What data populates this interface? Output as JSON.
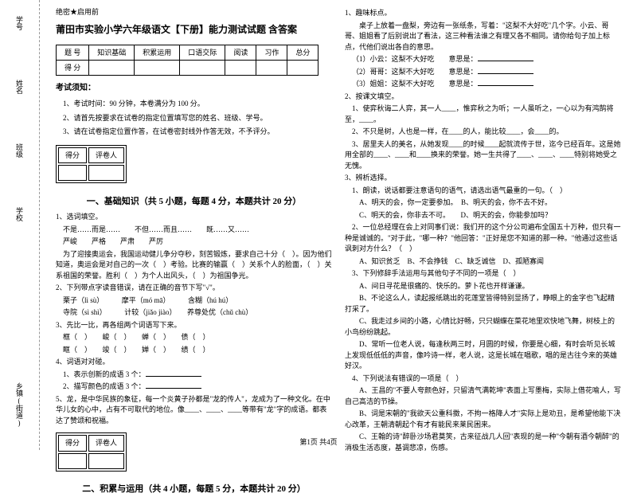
{
  "margin": {
    "l1": "学号",
    "l2": "姓名",
    "l3": "班级",
    "l4": "学校",
    "l5": "乡镇(街道)",
    "note1": "考",
    "note2": "内",
    "note3": "线",
    "note4": "封"
  },
  "secret": "绝密★启用前",
  "title": "莆田市实验小学六年级语文【下册】能力测试试题 含答案",
  "scoreTable": {
    "headers": [
      "题 号",
      "知识基础",
      "积累运用",
      "口语交际",
      "阅读",
      "习作",
      "总分"
    ],
    "row2": "得 分"
  },
  "notice": {
    "title": "考试须知：",
    "items": [
      "1、考试时间：90 分钟，本卷满分为 100 分。",
      "2、请首先按要求在试卷的指定位置填写您的姓名、班级、学号。",
      "3、请在试卷指定位置作答，在试卷密封线外作答无效，不予评分。"
    ]
  },
  "scoreBox": {
    "c1": "得分",
    "c2": "评卷人"
  },
  "section1": "一、基础知识（共 5 小题，每题 4 分，本题共计 20 分）",
  "q1": {
    "num": "1、选词填空。",
    "line1": "不是……而是……　　不但……而且……　　既……又……",
    "line2": "严峻　　严格　　严肃　　严厉",
    "line3": "为了迎接奥运会，我国运动健儿争分夺秒，刻苦锻炼，要求自己十分（　）。因为他们知道，奥运会是对自己的一次（　）考验。比赛的输赢（　）关系个人的脸面，（　）关系祖国的荣誉。胜利（　）为个人出风头，（　）为祖国争光。"
  },
  "q2": {
    "num": "2、下列带点字读音错误，请在正确的音节下写\"√\"。",
    "line1": "栗子（lì sù）　　　摩平（mó mā）　　　含糊（hú hú）",
    "line2": "寺院（sì shì）　　　计较（jiǎo jiào）　　养尊处优（chǔ chù）"
  },
  "q3": {
    "num": "3、先比一比，再各组两个词语写下来。",
    "line1": "框（　）　　峻（　）　　蝉（　）　　债（　）",
    "line2": "眶（　）　　竣（　）　　婵（　）　　绩（　）"
  },
  "q4": {
    "num": "4、词语对对碰。",
    "line1": "1、表示创新的成语 3 个：",
    "line2": "2、描写颜色的成语 3 个："
  },
  "q5": {
    "num": "5、龙，是中华民族的象征，每一个炎黄子孙都是\"龙的传人\"，龙成为了一种文化。在中华儿女的心中，占有不可取代的地位。像____、____、____等带有\"龙\"字的成语。都表达了赞颂和祝福。"
  },
  "section2": "二、积累与运用（共 4 小题，每题 5 分，本题共计 20 分）",
  "r1": {
    "num": "1、趣味标点。",
    "text1": "桌子上放着一盘梨，旁边有一张纸条，写着：\"这梨不大好吃\"几个字。小云、哥哥、姐姐看了后别说出了看法，这三种看法谁之有理又各不相同。请你给句子加上标点，代他们说出各自的意思。",
    "line1": "（1）小云：这梨不大好吃　　意思是：",
    "line2": "（2）哥哥：这梨不大好吃　　意思是：",
    "line3": "（3）姐姐：这梨不大好吃　　意思是："
  },
  "r2": {
    "num": "2、按课文填空。",
    "line1": "1、使弈秋诲二人弈，其一人____，惟弈秋之为听；一人虽听之，一心以为有鸿鹄将至，____。",
    "line2": "2、不只是树，人也是一样，在____的人，能比较____，会____的。",
    "line3": "3、居里夫人的美名，从她发现____的时候____起就流传于世，迄今已经百年。这是她用全部的____、____和____换来的荣誉。她一生共得了____、____、____特别将她受之无愧。"
  },
  "r3": {
    "num": "3、辨析选择。",
    "line1": "1、朗读，说话都要注意语句的语气，请选出语气最重的一句。（　）",
    "optA1": "A、明天的会，你一定要参加。　B、明天的会，你不去不好。",
    "optA2": "C、明天的会，你非去不可。　　D、明天的会，你能参加吗？",
    "line2": "2、一位总经理在会上对同事们说：我们开的这个分公司遍布全国五十万种，但只有一种是诚诚的。\"对于此，\"哪一种？\"他回答：\"正好是您不知道的那一种。\"他通过这些话讽刺对方什么？（　）",
    "optB": "A、知识贫乏　B、不会挣钱　C、缺乏诚信　D、孤陋寡闻",
    "line3": "3、下列修辞手法运用与其他句子不同的一项是（　）",
    "optC1": "A、间日寻花是很痛的、快乐的。萝卜花也开样谦谦。",
    "optC2": "B、不论这么人，读起报纸跳出的花莲堂皆得特别显扬了，睁眼上的金字也飞起精打采了。",
    "optC3": "C、我走过乡间的小路，心情比好畅，只只蝴蝶在菜花地里欢快地飞舞，树枝上的小鸟纷纷跳起。",
    "optC4": "D、常听一位老人说，每逢秋两三时，月圆的时候，你要是心细，有时会听见长城上发现低低低的声音，像吟诗一样，老人说，这是长城在唱歌，唱的是古往今来的英雄好汉。",
    "line4": "4、下列说法有错误的一项是（　）",
    "optD1": "A、王昌的\"不要人夸颜色好，只留清气满乾坤\"表面上写墨梅，实际上借花喻人，写自己高洁的节操。",
    "optD2": "B、词是宋朝的\"我欲天公重科擞，不拘一格降人才\"实际上是劝丑，是希望他能下决心改革，王朝清朝起个有才有能民来莱民困来。",
    "optD3": "C、王翰的诗\"醉卧沙场君莫笑，古来征战几人回\"表现的是一种\"今朝有酒今朝醉\"的消极生活态度，基调悲凉，伤感。"
  },
  "footer": "第1页 共4页"
}
